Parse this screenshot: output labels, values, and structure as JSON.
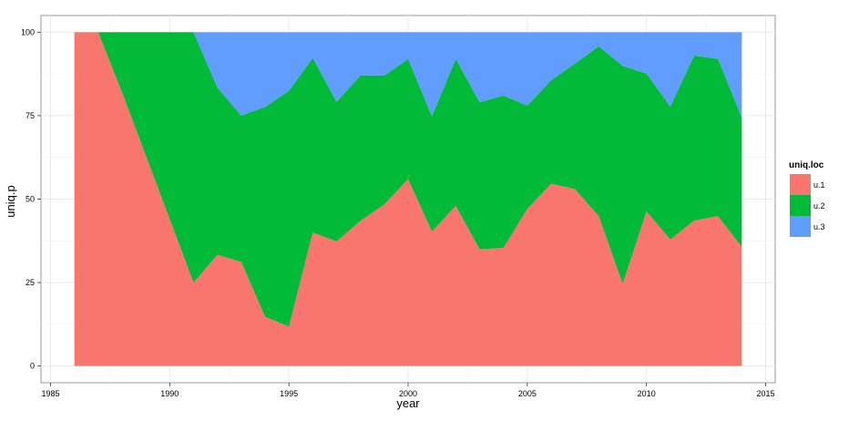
{
  "chart_data": {
    "type": "area",
    "stacked": true,
    "xlabel": "year",
    "ylabel": "uniq.p",
    "xlim": [
      1984.6,
      2015.4
    ],
    "ylim": [
      -5,
      105
    ],
    "x_ticks": [
      1985,
      1990,
      1995,
      2000,
      2005,
      2010,
      2015
    ],
    "y_ticks": [
      0,
      25,
      50,
      75,
      100
    ],
    "grid": true,
    "legend": {
      "title": "uniq.loc",
      "position": "right"
    },
    "x": [
      1986,
      1987,
      1988,
      1989,
      1990,
      1991,
      1992,
      1993,
      1994,
      1995,
      1996,
      1997,
      1998,
      1999,
      2000,
      2001,
      2002,
      2003,
      2004,
      2005,
      2006,
      2007,
      2008,
      2009,
      2010,
      2011,
      2012,
      2013,
      2014
    ],
    "series": [
      {
        "name": "u.1",
        "color": "#F8766D",
        "values": [
          100,
          100,
          82,
          63,
          44,
          25,
          33.3,
          31.2,
          14.8,
          11.8,
          40,
          37.3,
          43.5,
          48.4,
          56.0,
          40.3,
          48.0,
          35.0,
          35.4,
          47.1,
          54.6,
          53.0,
          44.9,
          24.6,
          46.3,
          37.9,
          43.6,
          44.9,
          35.7
        ]
      },
      {
        "name": "u.2",
        "color": "#00BA38",
        "values": [
          0,
          0,
          18,
          37,
          56,
          75,
          50.1,
          43.8,
          62.8,
          70.6,
          52.3,
          41.8,
          43.6,
          38.6,
          36.0,
          34.5,
          44.0,
          44.0,
          45.6,
          30.9,
          31.0,
          37.6,
          50.9,
          65.3,
          41.3,
          39.8,
          49.4,
          47.1,
          38.7
        ]
      },
      {
        "name": "u.3",
        "color": "#619CFF",
        "values": [
          0,
          0,
          0,
          0,
          0,
          0,
          16.6,
          25,
          22.4,
          17.6,
          7.7,
          20.9,
          12.9,
          13.0,
          8.0,
          25.2,
          8.0,
          21.0,
          19.0,
          22.0,
          14.4,
          9.4,
          4.2,
          10.1,
          12.4,
          22.3,
          7.0,
          8.0,
          25.6
        ]
      }
    ]
  }
}
